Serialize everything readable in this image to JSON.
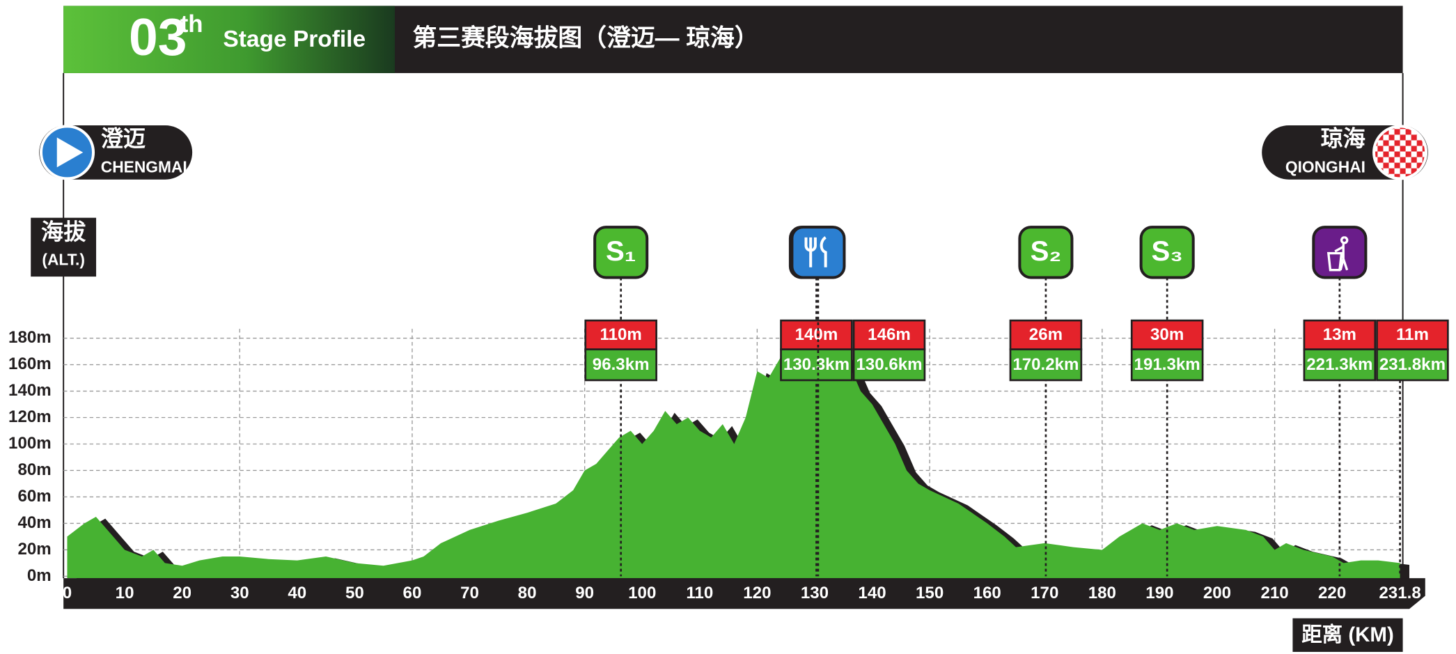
{
  "header": {
    "number": "03",
    "suffix": "th",
    "subtitle": "Stage Profile",
    "title": "第三赛段海拔图（澄迈— 琼海）"
  },
  "start": {
    "name": "澄迈",
    "name_en": "CHENGMAI"
  },
  "finish": {
    "name": "琼海",
    "name_en": "QIONGHAI"
  },
  "chart_data": {
    "type": "area",
    "color": "#47b232",
    "ylabel": {
      "text": "海拔",
      "unit": "(ALT.)"
    },
    "xlabel": "距离 (KM)",
    "x": [
      0,
      3,
      5,
      7,
      10,
      13,
      15,
      17,
      20,
      23,
      27,
      30,
      35,
      40,
      45,
      50,
      55,
      60,
      62,
      65,
      70,
      75,
      80,
      85,
      88,
      90,
      92,
      94,
      96,
      98,
      100,
      102,
      104,
      106,
      108,
      110,
      112,
      114,
      116,
      118,
      120,
      122,
      124,
      126,
      128,
      130,
      132,
      134,
      136,
      138,
      140,
      142,
      144,
      146,
      148,
      150,
      155,
      160,
      163,
      165,
      170,
      175,
      180,
      183,
      185,
      187,
      190,
      193,
      196,
      200,
      205,
      208,
      210,
      212,
      215,
      220,
      222,
      225,
      228,
      231.8
    ],
    "values": [
      30,
      40,
      45,
      35,
      20,
      15,
      20,
      10,
      8,
      12,
      15,
      15,
      13,
      12,
      15,
      10,
      8,
      12,
      15,
      25,
      35,
      42,
      48,
      55,
      65,
      80,
      85,
      95,
      105,
      110,
      100,
      110,
      125,
      115,
      120,
      110,
      105,
      115,
      100,
      120,
      155,
      150,
      165,
      160,
      170,
      150,
      160,
      170,
      160,
      140,
      130,
      115,
      100,
      80,
      70,
      65,
      55,
      40,
      30,
      22,
      25,
      22,
      20,
      30,
      35,
      40,
      35,
      40,
      35,
      38,
      35,
      30,
      20,
      25,
      20,
      15,
      10,
      12,
      12,
      10
    ],
    "xlim": [
      0,
      231.8
    ],
    "ylim": [
      0,
      180
    ],
    "xticks": [
      0,
      10,
      20,
      30,
      40,
      50,
      60,
      70,
      80,
      90,
      100,
      110,
      120,
      130,
      140,
      150,
      160,
      170,
      180,
      190,
      200,
      210,
      220,
      231.8
    ],
    "yticks": [
      {
        "value": 0,
        "label": "0m"
      },
      {
        "value": 20,
        "label": "20m"
      },
      {
        "value": 40,
        "label": "40m"
      },
      {
        "value": 60,
        "label": "60m"
      },
      {
        "value": 80,
        "label": "80m"
      },
      {
        "value": 100,
        "label": "100m"
      },
      {
        "value": 120,
        "label": "120m"
      },
      {
        "value": 140,
        "label": "140m"
      },
      {
        "value": 160,
        "label": "160m"
      },
      {
        "value": 180,
        "label": "180m"
      }
    ],
    "grid": true,
    "markers": [
      {
        "icon": "sprint",
        "label": "S₁",
        "altitude": 110,
        "altitude_label": "110m",
        "distance": 96.3,
        "distance_label": "96.3km"
      },
      {
        "icon": "bin",
        "altitude": 140,
        "altitude_label": "140m",
        "distance": 130.3,
        "distance_label": "130.3km"
      },
      {
        "icon": "food",
        "altitude": 146,
        "altitude_label": "146m",
        "distance": 130.6,
        "distance_label": "130.6km"
      },
      {
        "icon": "sprint",
        "label": "S₂",
        "altitude": 26,
        "altitude_label": "26m",
        "distance": 170.2,
        "distance_label": "170.2km"
      },
      {
        "icon": "sprint",
        "label": "S₃",
        "altitude": 30,
        "altitude_label": "30m",
        "distance": 191.3,
        "distance_label": "191.3km"
      },
      {
        "icon": "bin",
        "altitude": 13,
        "altitude_label": "13m",
        "distance": 221.3,
        "distance_label": "221.3km"
      },
      {
        "altitude": 11,
        "altitude_label": "11m",
        "distance": 231.8,
        "distance_label": "231.8km"
      }
    ]
  }
}
